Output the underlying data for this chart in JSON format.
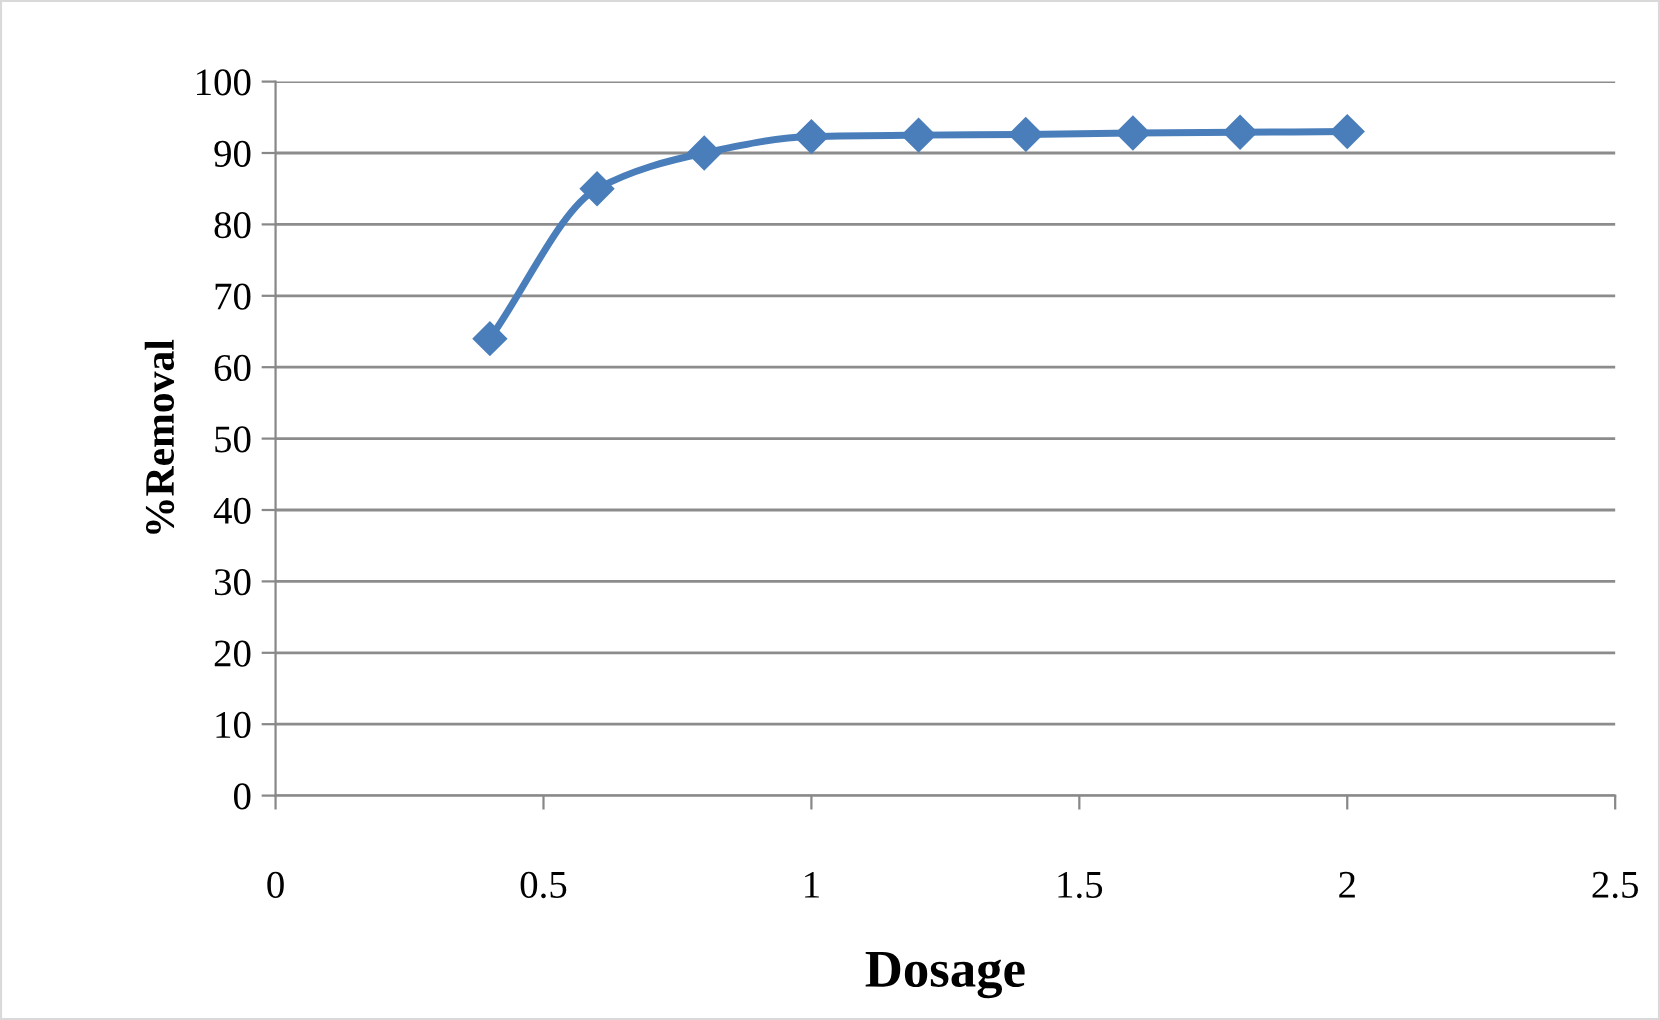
{
  "chart_data": {
    "type": "line",
    "xlabel": "Dosage",
    "ylabel": "%Removal",
    "x": [
      0.4,
      0.6,
      0.8,
      1.0,
      1.2,
      1.4,
      1.6,
      1.8,
      2.0
    ],
    "series": [
      {
        "color": "#4a7ebb",
        "values": [
          64,
          85,
          90,
          92.3,
          92.5,
          92.6,
          92.8,
          92.9,
          93
        ]
      }
    ],
    "xlim": [
      0,
      2.5
    ],
    "xticks": [
      0,
      0.5,
      1,
      1.5,
      2,
      2.5
    ],
    "ylim": [
      0,
      100
    ],
    "yticks": [
      0,
      10,
      20,
      30,
      40,
      50,
      60,
      70,
      80,
      90,
      100
    ],
    "grid": "y",
    "marker": "diamond",
    "line_style": "solid",
    "legend": false
  }
}
